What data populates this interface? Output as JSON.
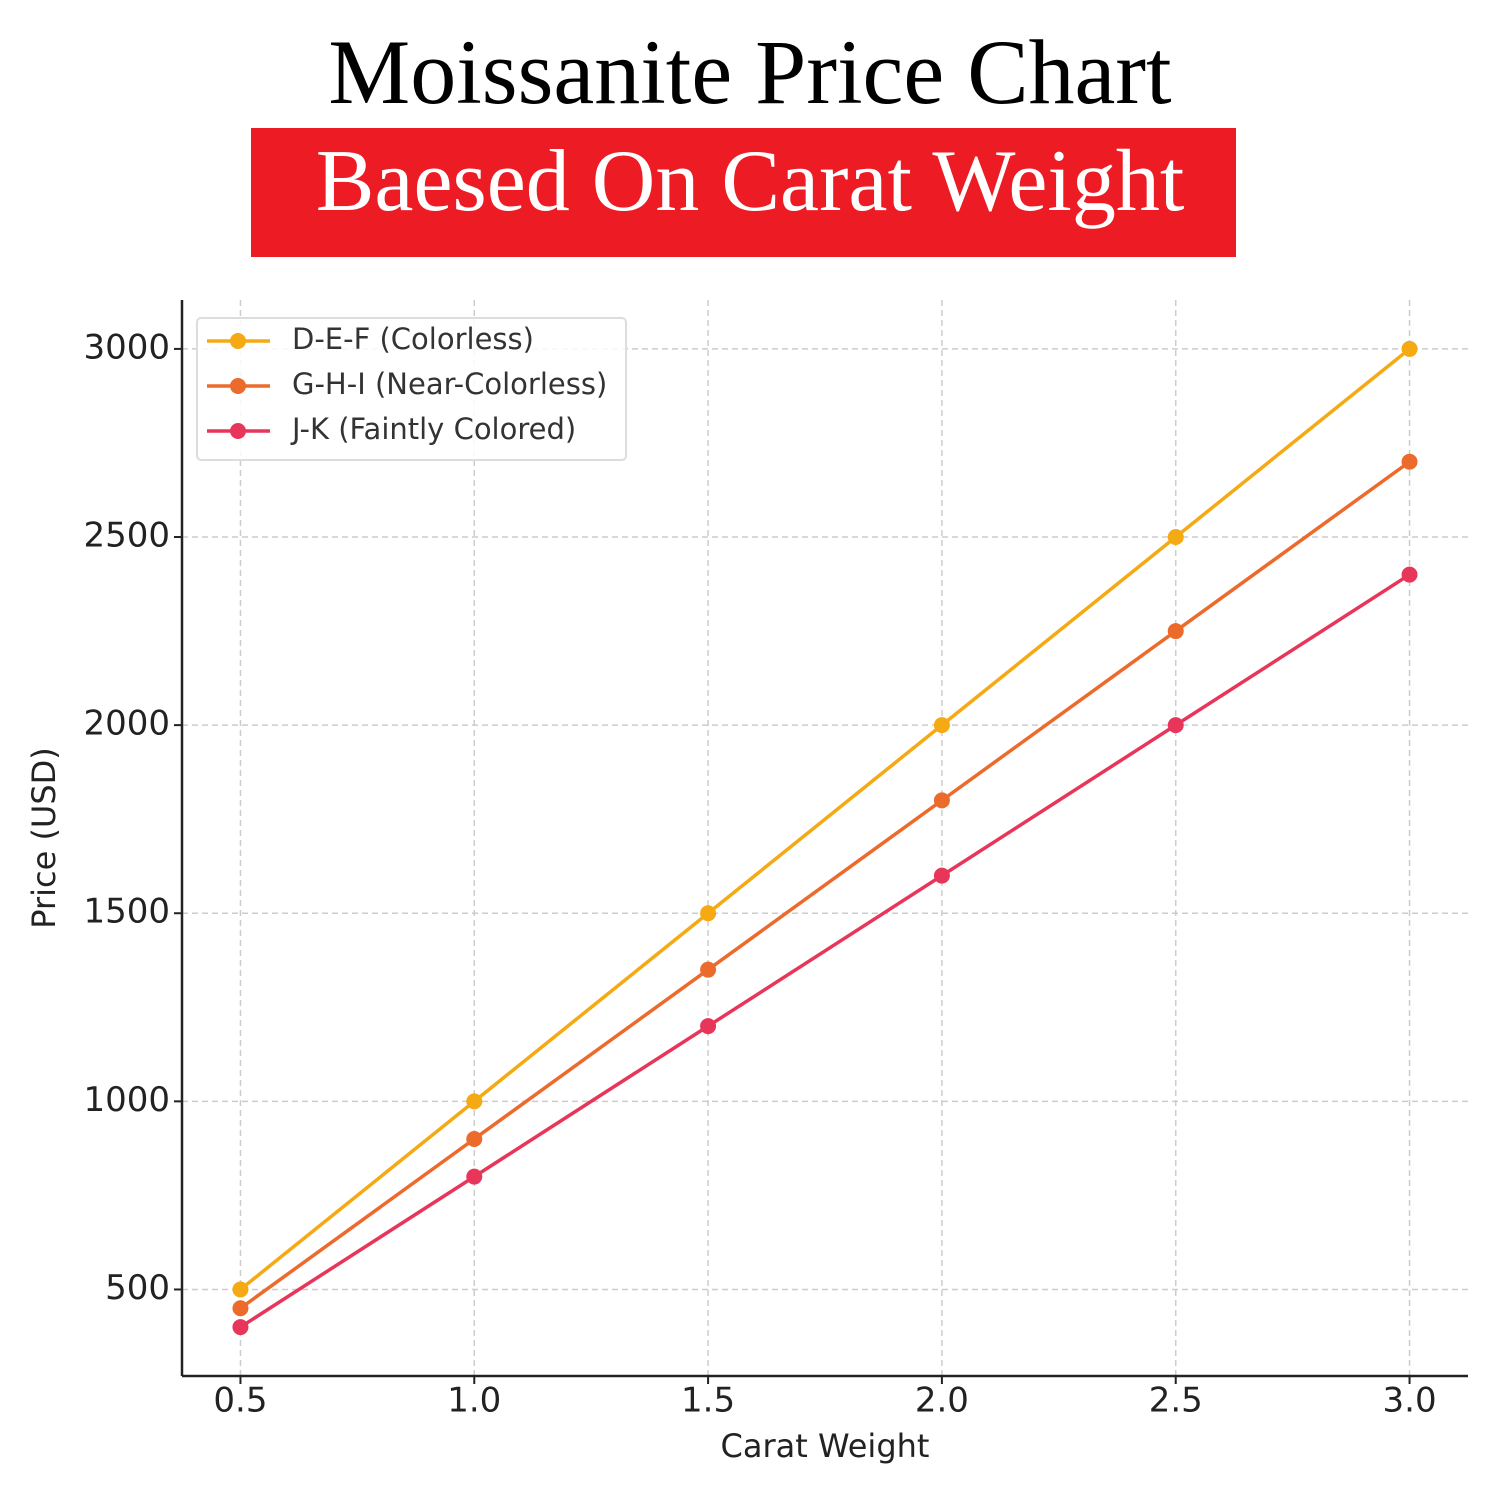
{
  "title": "Moissanite Price Chart",
  "subtitle": "Baesed On Carat Weight",
  "chart_data": {
    "type": "line",
    "x_label": "Carat Weight",
    "y_label": "Price (USD)",
    "x": [
      0.5,
      1.0,
      1.5,
      2.0,
      2.5,
      3.0
    ],
    "series": [
      {
        "name": "D-E-F (Colorless)",
        "color": "#f5a913",
        "values": [
          500,
          1000,
          1500,
          2000,
          2500,
          3000
        ]
      },
      {
        "name": "G-H-I (Near-Colorless)",
        "color": "#ec6a2b",
        "values": [
          450,
          900,
          1350,
          1800,
          2250,
          2700
        ]
      },
      {
        "name": "J-K (Faintly Colored)",
        "color": "#e8365a",
        "values": [
          400,
          800,
          1200,
          1600,
          2000,
          2400
        ]
      }
    ],
    "xlim": [
      0.375,
      3.125
    ],
    "ylim": [
      270,
      3130
    ],
    "xticks": [
      0.5,
      {
        "value": 1,
        "label": "1.0"
      },
      1.5,
      {
        "value": 2,
        "label": "2.0"
      },
      2.5,
      {
        "value": 3,
        "label": "3.0"
      }
    ],
    "yticks": [
      500,
      1000,
      1500,
      2000,
      2500,
      3000
    ],
    "grid": true,
    "legend": "upper left"
  }
}
